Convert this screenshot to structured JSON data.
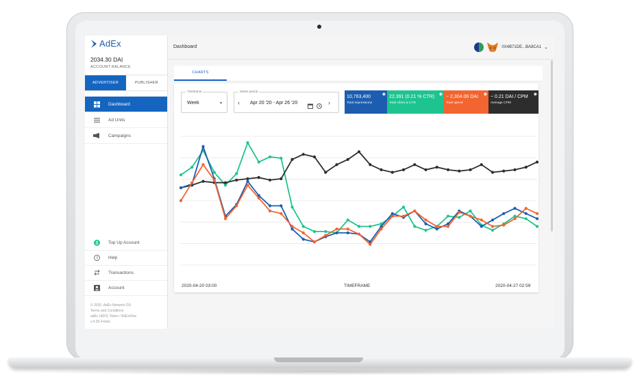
{
  "app": {
    "logo_text": "AdEx",
    "balance": "2034.30 DAI",
    "balance_label": "ACCOUNT BALANCE"
  },
  "sidebar": {
    "tabs": [
      "ADVERTISER",
      "PUBLISHER"
    ],
    "items": [
      {
        "label": "Dashboard",
        "icon": "dashboard-icon"
      },
      {
        "label": "Ad Units",
        "icon": "list-icon"
      },
      {
        "label": "Campaigns",
        "icon": "megaphone-icon"
      }
    ],
    "bottom_items": [
      {
        "label": "Top Up Account",
        "icon": "dollar-icon"
      },
      {
        "label": "Help",
        "icon": "help-icon"
      },
      {
        "label": "Transactions",
        "icon": "swap-icon"
      },
      {
        "label": "Account",
        "icon": "account-icon"
      }
    ],
    "footer": [
      "© 2020. AdEx Network OÜ",
      "Terms and Conditions",
      "adEx (ADX) Token / AdExDine",
      "v.4.20.4-beta"
    ]
  },
  "header": {
    "title": "Dashboard",
    "address": "0X4B71DE...BA8CA1"
  },
  "main": {
    "tab": "CHARTS",
    "timeframe": {
      "label": "Timeframe",
      "value": "Week"
    },
    "period": {
      "label": "Select period",
      "value": "Apr 20 '20 - Apr 26 '20"
    },
    "stats": [
      {
        "value": "10,763,400",
        "label": "Total impressions",
        "color": "#1c5db0"
      },
      {
        "value": "22,391 (0.21 % CTR)",
        "label": "Total clicks & CTR",
        "color": "#1ec48f"
      },
      {
        "value": "~ 2,304.06 DAI",
        "label": "Total spend",
        "color": "#f26430"
      },
      {
        "value": "~ 0.21 DAI / CPM",
        "label": "Average CPM",
        "color": "#2d2d2d"
      }
    ],
    "x_start": "2020-04-20 03:00",
    "x_end": "2020-04-27 02:59",
    "xlabel": "TIMEFRAME"
  },
  "chart_data": {
    "type": "line",
    "xlabel": "TIMEFRAME",
    "x_range": [
      "2020-04-20 03:00",
      "2020-04-27 02:59"
    ],
    "ylim": [
      0,
      100
    ],
    "grid": true,
    "series": [
      {
        "color": "#1ec48f",
        "values": [
          70,
          76,
          89,
          72,
          62,
          71,
          95,
          80,
          84,
          83,
          45,
          30,
          26,
          26,
          25,
          35,
          30,
          30,
          32,
          38,
          45,
          30,
          27,
          30,
          38,
          37,
          42,
          31,
          27,
          32,
          38,
          36,
          30
        ]
      },
      {
        "color": "#2d2d2d",
        "values": [
          60,
          62,
          65,
          64,
          64,
          66,
          67,
          68,
          66,
          67,
          82,
          86,
          84,
          72,
          78,
          82,
          88,
          78,
          74,
          72,
          74,
          78,
          74,
          76,
          74,
          73,
          74,
          78,
          72,
          73,
          74,
          76,
          80
        ]
      },
      {
        "color": "#1c5db0",
        "values": [
          60,
          63,
          92,
          67,
          38,
          47,
          65,
          54,
          46,
          46,
          28,
          20,
          18,
          22,
          25,
          25,
          24,
          18,
          30,
          40,
          37,
          42,
          32,
          28,
          32,
          42,
          38,
          30,
          35,
          40,
          44,
          40,
          36
        ]
      },
      {
        "color": "#f26430",
        "values": [
          50,
          64,
          78,
          66,
          36,
          46,
          62,
          52,
          42,
          40,
          30,
          25,
          18,
          23,
          28,
          28,
          24,
          16,
          28,
          38,
          38,
          42,
          35,
          30,
          30,
          41,
          38,
          35,
          30,
          31,
          36,
          44,
          40
        ]
      }
    ]
  }
}
